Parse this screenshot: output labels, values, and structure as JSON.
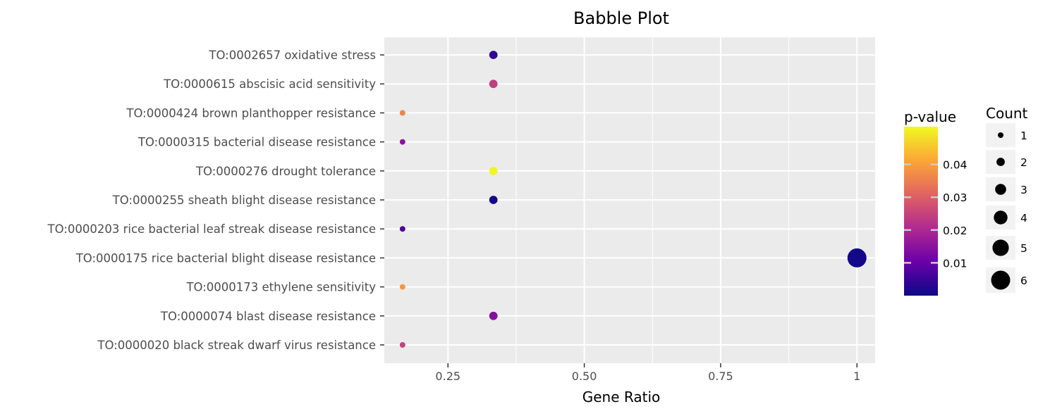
{
  "chart_data": {
    "type": "scatter",
    "title": "Babble Plot",
    "xlabel": "Gene Ratio",
    "ylabel": "",
    "xlim": [
      0.1333,
      1.0333
    ],
    "x_ticks": [
      {
        "value": 0.25,
        "label": "0.25"
      },
      {
        "value": 0.5,
        "label": "0.50"
      },
      {
        "value": 0.75,
        "label": "0.75"
      },
      {
        "value": 1.0,
        "label": "1"
      }
    ],
    "grid": true,
    "categories": [
      "TO:0002657 oxidative stress",
      "TO:0000615 abscisic acid sensitivity",
      "TO:0000424 brown planthopper resistance",
      "TO:0000315 bacterial disease resistance",
      "TO:0000276 drought tolerance",
      "TO:0000255 sheath blight disease resistance",
      "TO:0000203 rice bacterial leaf streak disease resistance",
      "TO:0000175 rice bacterial blight disease resistance",
      "TO:0000173 ethylene sensitivity",
      "TO:0000074 blast disease resistance",
      "TO:0000020 black streak dwarf virus resistance"
    ],
    "points": [
      {
        "category": "TO:0002657 oxidative stress",
        "gene_ratio": 0.3333,
        "count": 2,
        "p_value": 0.004
      },
      {
        "category": "TO:0000615 abscisic acid sensitivity",
        "gene_ratio": 0.3333,
        "count": 2,
        "p_value": 0.024
      },
      {
        "category": "TO:0000424 brown planthopper resistance",
        "gene_ratio": 0.1667,
        "count": 1,
        "p_value": 0.036
      },
      {
        "category": "TO:0000315 bacterial disease resistance",
        "gene_ratio": 0.1667,
        "count": 1,
        "p_value": 0.015
      },
      {
        "category": "TO:0000276 drought tolerance",
        "gene_ratio": 0.3333,
        "count": 2,
        "p_value": 0.051
      },
      {
        "category": "TO:0000255 sheath blight disease resistance",
        "gene_ratio": 0.3333,
        "count": 2,
        "p_value": 0.001
      },
      {
        "category": "TO:0000203 rice bacterial leaf streak disease resistance",
        "gene_ratio": 0.1667,
        "count": 1,
        "p_value": 0.007
      },
      {
        "category": "TO:0000175 rice bacterial blight disease resistance",
        "gene_ratio": 1.0,
        "count": 6,
        "p_value": 0.0005
      },
      {
        "category": "TO:0000173 ethylene sensitivity",
        "gene_ratio": 0.1667,
        "count": 1,
        "p_value": 0.039
      },
      {
        "category": "TO:0000074 blast disease resistance",
        "gene_ratio": 0.3333,
        "count": 2,
        "p_value": 0.014
      },
      {
        "category": "TO:0000020 black streak dwarf virus resistance",
        "gene_ratio": 0.1667,
        "count": 1,
        "p_value": 0.025
      }
    ],
    "color_legend": {
      "title": "p-value",
      "range": [
        0.0,
        0.0515
      ],
      "ticks": [
        {
          "value": 0.04,
          "label": "0.04"
        },
        {
          "value": 0.03,
          "label": "0.03"
        },
        {
          "value": 0.02,
          "label": "0.02"
        },
        {
          "value": 0.01,
          "label": "0.01"
        }
      ],
      "colormap": "plasma",
      "colors": [
        "#0d0887",
        "#6a00a8",
        "#b12a90",
        "#e16462",
        "#fca636",
        "#f0f921"
      ]
    },
    "size_legend": {
      "title": "Count",
      "entries": [
        {
          "value": 1,
          "label": "1"
        },
        {
          "value": 2,
          "label": "2"
        },
        {
          "value": 3,
          "label": "3"
        },
        {
          "value": 4,
          "label": "4"
        },
        {
          "value": 5,
          "label": "5"
        },
        {
          "value": 6,
          "label": "6"
        }
      ]
    },
    "legend_position": "right"
  }
}
